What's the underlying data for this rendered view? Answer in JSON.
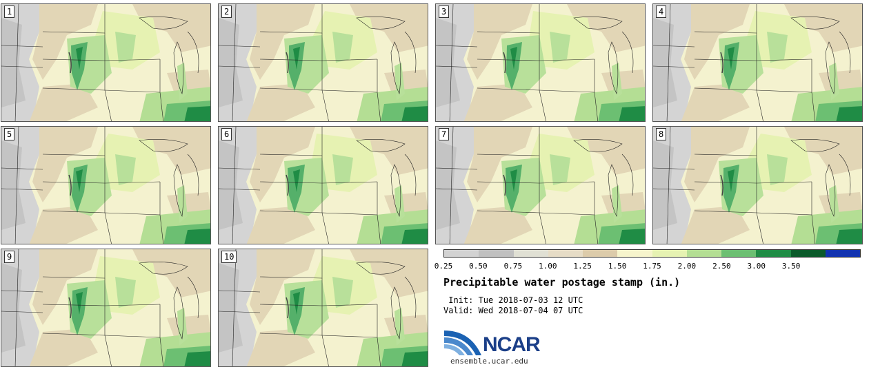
{
  "panels": [
    {
      "label": "1"
    },
    {
      "label": "2"
    },
    {
      "label": "3"
    },
    {
      "label": "4"
    },
    {
      "label": "5"
    },
    {
      "label": "6"
    },
    {
      "label": "7"
    },
    {
      "label": "8"
    },
    {
      "label": "9"
    },
    {
      "label": "10"
    }
  ],
  "colorbar": {
    "colors": [
      "#d2d2d2",
      "#c0c0c0",
      "#e0e0d4",
      "#e6dcc6",
      "#dccbaa",
      "#f6f4cc",
      "#e6f2b2",
      "#b4de94",
      "#6cbf72",
      "#1f8c45",
      "#0a5a2a",
      "#1132b0"
    ],
    "ticks": [
      "0.25",
      "0.50",
      "0.75",
      "1.00",
      "1.25",
      "1.50",
      "1.75",
      "2.00",
      "2.50",
      "3.00",
      "3.50"
    ]
  },
  "title": "Precipitable water postage stamp (in.)",
  "init": " Init: Tue 2018-07-03 12 UTC",
  "valid": "Valid: Wed 2018-07-04 07 UTC",
  "logo": {
    "text": "NCAR",
    "url": "ensemble.ucar.edu"
  }
}
